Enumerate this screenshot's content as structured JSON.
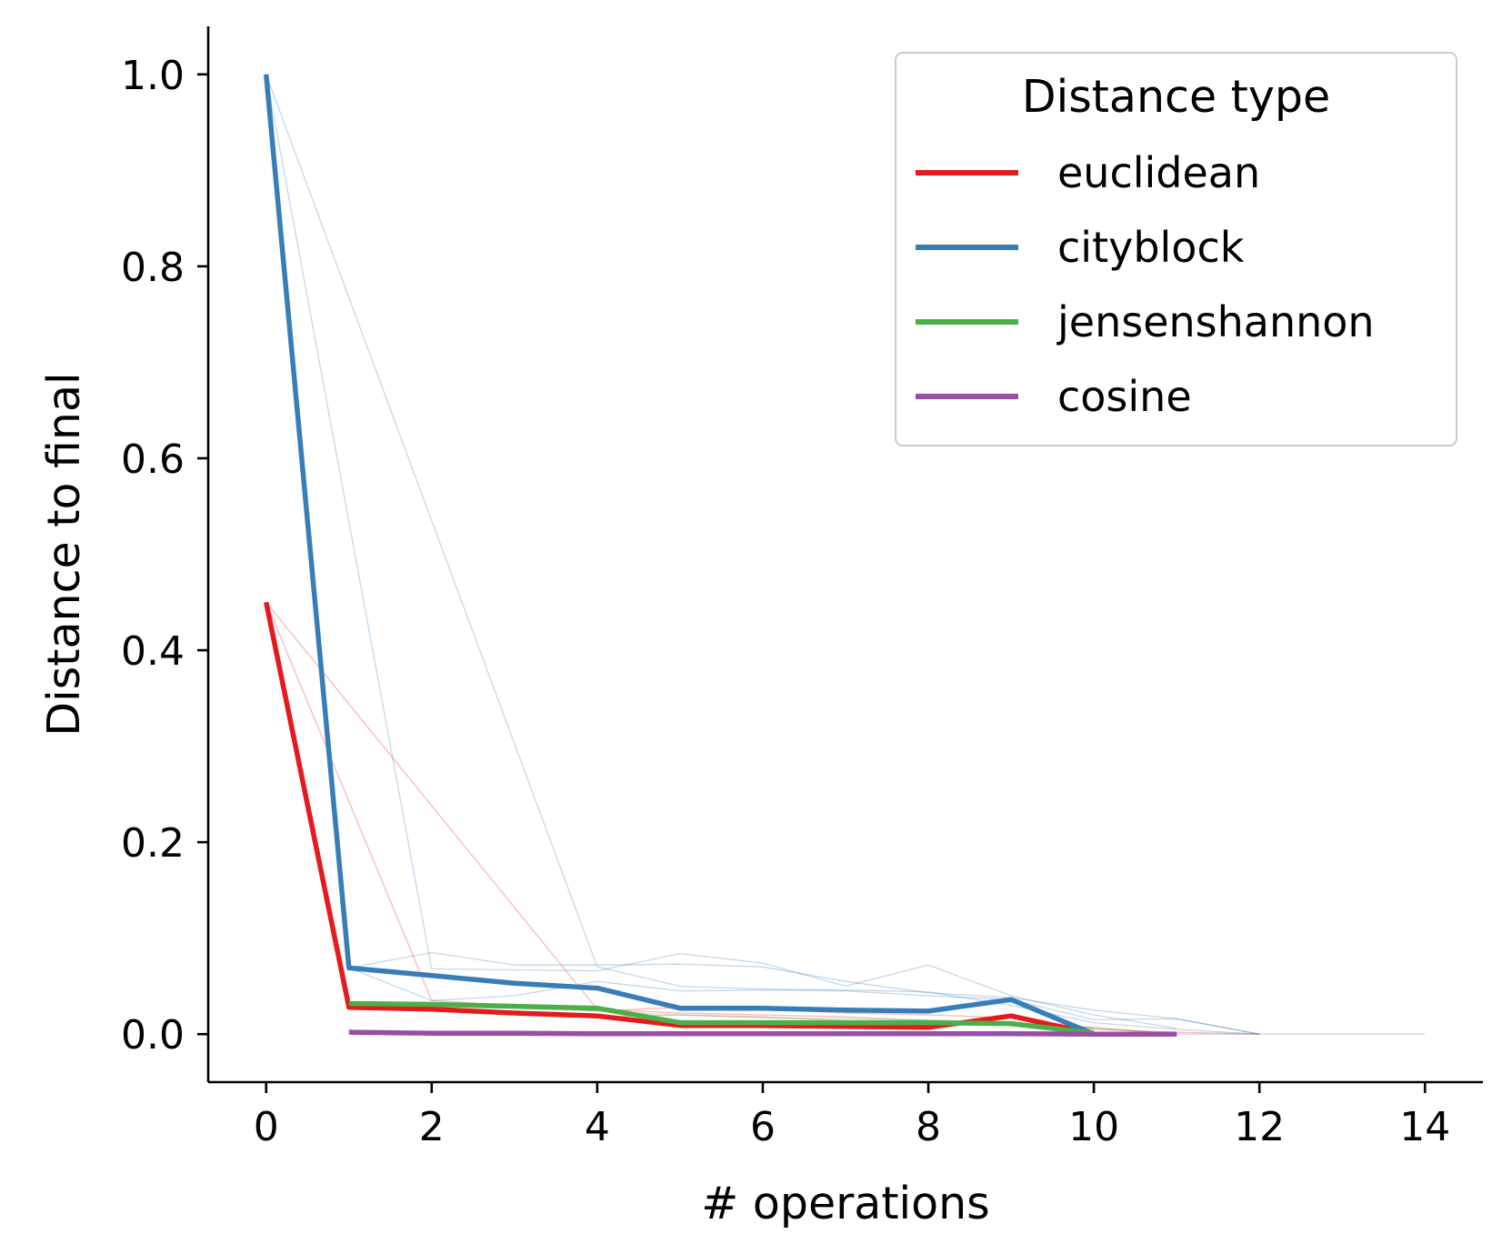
{
  "chart_data": {
    "type": "line",
    "xlabel": "# operations",
    "ylabel": "Distance to final",
    "xlim": [
      -0.7,
      14.7
    ],
    "ylim": [
      -0.05,
      1.05
    ],
    "xticks": [
      0,
      2,
      4,
      6,
      8,
      10,
      12,
      14
    ],
    "yticks": [
      0.0,
      0.2,
      0.4,
      0.6,
      0.8,
      1.0
    ],
    "xtick_labels": [
      "0",
      "2",
      "4",
      "6",
      "8",
      "10",
      "12",
      "14"
    ],
    "ytick_labels": [
      "0.0",
      "0.2",
      "0.4",
      "0.6",
      "0.8",
      "1.0"
    ],
    "grid": false,
    "legend": {
      "title": "Distance type",
      "placement": "top-right"
    },
    "series": [
      {
        "name": "euclidean",
        "color": "#e41a1c",
        "x": [
          0,
          1,
          2,
          3,
          4,
          5,
          6,
          7,
          8,
          9,
          10
        ],
        "y": [
          0.45,
          0.028,
          0.026,
          0.022,
          0.019,
          0.009,
          0.009,
          0.008,
          0.007,
          0.019,
          0.0
        ]
      },
      {
        "name": "cityblock",
        "color": "#377eb8",
        "x": [
          0,
          1,
          2,
          3,
          4,
          5,
          6,
          7,
          8,
          9,
          10
        ],
        "y": [
          1.0,
          0.069,
          0.061,
          0.053,
          0.048,
          0.027,
          0.027,
          0.025,
          0.024,
          0.036,
          0.0
        ]
      },
      {
        "name": "jensenshannon",
        "color": "#4daf4a",
        "x": [
          1,
          2,
          3,
          4,
          5,
          6,
          7,
          8,
          9,
          10
        ],
        "y": [
          0.032,
          0.031,
          0.029,
          0.027,
          0.012,
          0.012,
          0.012,
          0.012,
          0.011,
          0.001
        ]
      },
      {
        "name": "cosine",
        "color": "#984ea3",
        "x": [
          1,
          2,
          3,
          4,
          5,
          6,
          7,
          8,
          9,
          10,
          11
        ],
        "y": [
          0.002,
          0.001,
          0.001,
          0.0005,
          0.0005,
          0.0005,
          0.0005,
          0.0005,
          0.0005,
          0.0,
          0.0
        ]
      }
    ],
    "background_traces": [
      {
        "color": "#377eb8",
        "x": [
          0,
          1,
          2,
          3,
          4,
          5,
          6,
          7,
          8,
          9,
          10,
          11,
          12
        ],
        "y": [
          1.0,
          0.069,
          0.085,
          0.072,
          0.072,
          0.073,
          0.07,
          0.055,
          0.043,
          0.038,
          0.025,
          0.016,
          0.0
        ]
      },
      {
        "color": "#377eb8",
        "x": [
          0,
          2,
          3,
          4,
          5,
          6,
          7,
          8,
          9,
          10,
          11
        ],
        "y": [
          1.0,
          0.068,
          0.067,
          0.066,
          0.084,
          0.074,
          0.05,
          0.072,
          0.04,
          0.02,
          0.006
        ]
      },
      {
        "color": "#377eb8",
        "x": [
          0,
          4,
          5,
          6,
          7,
          8,
          9,
          10,
          11,
          12
        ],
        "y": [
          1.0,
          0.07,
          0.05,
          0.047,
          0.046,
          0.044,
          0.03,
          0.012,
          0.005,
          0.0
        ]
      },
      {
        "color": "#377eb8",
        "x": [
          1,
          2,
          3,
          4,
          5,
          6,
          7,
          8,
          9,
          10,
          11,
          12
        ],
        "y": [
          0.069,
          0.035,
          0.04,
          0.055,
          0.045,
          0.046,
          0.045,
          0.04,
          0.036,
          0.015,
          0.016,
          0.0
        ]
      },
      {
        "color": "#e41a1c",
        "x": [
          0,
          1,
          2,
          3,
          4,
          5,
          6,
          7,
          8,
          9,
          10,
          11
        ],
        "y": [
          0.45,
          0.028,
          0.025,
          0.023,
          0.018,
          0.02,
          0.018,
          0.014,
          0.013,
          0.012,
          0.007,
          0.0
        ]
      },
      {
        "color": "#e41a1c",
        "x": [
          0,
          2,
          3,
          4,
          5,
          6,
          7,
          8,
          9,
          10
        ],
        "y": [
          0.45,
          0.035,
          0.03,
          0.024,
          0.028,
          0.026,
          0.022,
          0.02,
          0.017,
          0.006
        ]
      },
      {
        "color": "#e41a1c",
        "x": [
          0,
          4,
          5,
          6,
          7,
          8,
          9,
          10,
          11,
          12
        ],
        "y": [
          0.45,
          0.026,
          0.022,
          0.02,
          0.018,
          0.014,
          0.011,
          0.005,
          0.002,
          0.0
        ]
      },
      {
        "color": "#4daf4a",
        "x": [
          1,
          2,
          3,
          4,
          5,
          6,
          7,
          8,
          9,
          10,
          11
        ],
        "y": [
          0.032,
          0.029,
          0.027,
          0.024,
          0.02,
          0.017,
          0.016,
          0.015,
          0.012,
          0.006,
          0.0
        ]
      },
      {
        "color": "#984ea3",
        "x": [
          1,
          3,
          5,
          7,
          9,
          11,
          13,
          14
        ],
        "y": [
          0.002,
          0.001,
          0.001,
          0.0005,
          0.0005,
          0.0,
          0.0,
          0.0
        ]
      }
    ]
  }
}
